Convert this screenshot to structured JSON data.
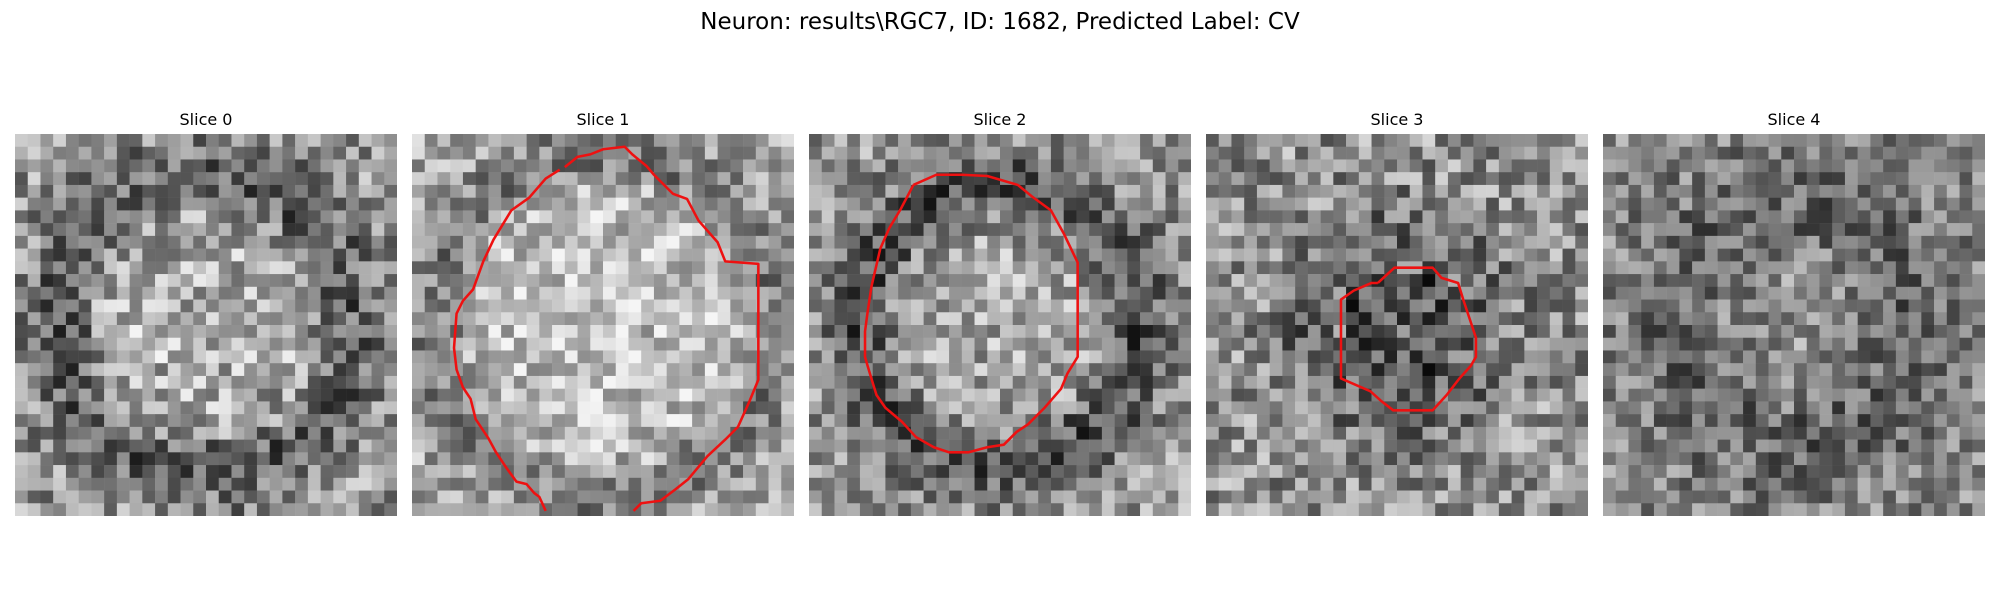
{
  "title": "Neuron: results\\RGC7, ID: 1682, Predicted Label: CV",
  "contour_color": "#ee1111",
  "colormap": "gray",
  "slices": [
    {
      "label": "Slice 0"
    },
    {
      "label": "Slice 1"
    },
    {
      "label": "Slice 2"
    },
    {
      "label": "Slice 3"
    },
    {
      "label": "Slice 4"
    }
  ]
}
